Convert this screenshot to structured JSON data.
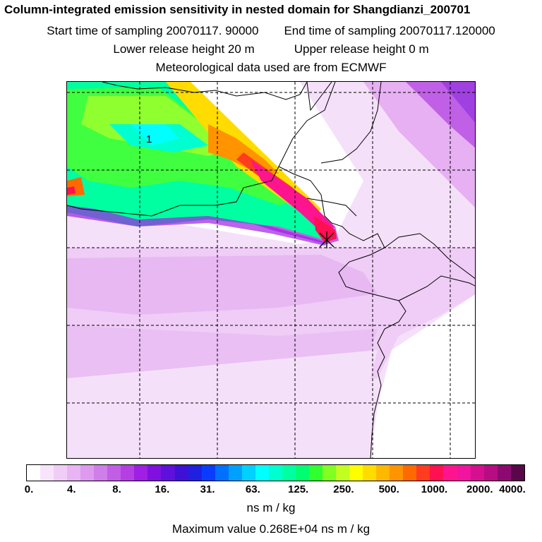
{
  "header": {
    "title": "Column-integrated emission sensitivity in nested domain for Shangdianzi_200701",
    "start_label": "Start time of sampling 20070117. 90000",
    "end_label": "End time of sampling 20070117.120000",
    "lower_label": "Lower release height   20 m",
    "upper_label": "Upper release height    0 m",
    "met_label": "Meteorological data used are from ECMWF"
  },
  "map": {
    "contour_label": "1",
    "release_marker": "release-site-cross"
  },
  "legend": {
    "tick_labels": [
      "0.",
      "4.",
      "8.",
      "16.",
      "31.",
      "63.",
      "125.",
      "250.",
      "500.",
      "1000.",
      "2000.",
      "4000."
    ],
    "colors": [
      "#ffffff",
      "#f7e4fb",
      "#f0cdf7",
      "#e8b4f3",
      "#dd9aee",
      "#cf7eea",
      "#c25ee6",
      "#b43fe3",
      "#9f1fe4",
      "#7f10e0",
      "#5e10dc",
      "#3f10d6",
      "#2020e0",
      "#0a3cff",
      "#0070ff",
      "#00a0ff",
      "#00d0ff",
      "#00ffff",
      "#00ffd0",
      "#00ffa0",
      "#00ff70",
      "#30ff30",
      "#80ff20",
      "#c0ff20",
      "#ffff00",
      "#ffdc00",
      "#ffb800",
      "#ff9400",
      "#ff6a00",
      "#ff3c1e",
      "#ff1050",
      "#ff1490",
      "#f0149e",
      "#d41090",
      "#b80c82",
      "#8c0a70",
      "#5a064a"
    ],
    "units": "ns m / kg",
    "max_value": "Maximum value  0.268E+04 ns m / kg"
  }
}
